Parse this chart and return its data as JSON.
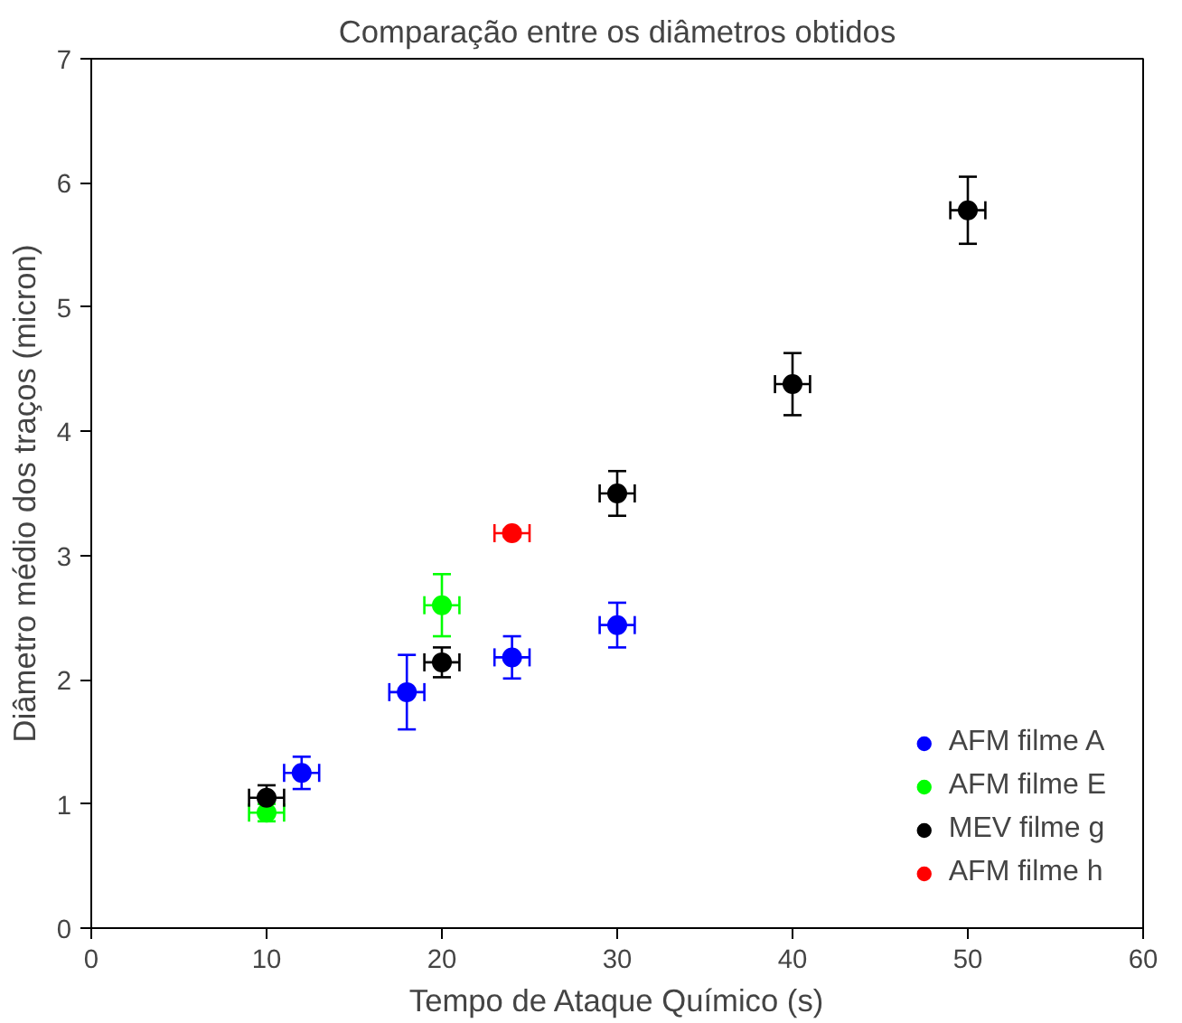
{
  "chart_data": {
    "type": "scatter",
    "title": "Comparação entre os diâmetros obtidos",
    "xlabel": "Tempo de Ataque Químico (s)",
    "ylabel": "Diâmetro médio dos traços (micron)",
    "xlim": [
      0,
      60
    ],
    "ylim": [
      0,
      7
    ],
    "xticks": [
      0,
      10,
      20,
      30,
      40,
      50,
      60
    ],
    "yticks": [
      0,
      1,
      2,
      3,
      4,
      5,
      6,
      7
    ],
    "grid": false,
    "legend": "bottom right",
    "marker": "circle",
    "series": [
      {
        "name": "AFM filme A",
        "color": "#0000ff",
        "x": [
          12,
          18,
          24,
          30
        ],
        "values": [
          1.25,
          1.9,
          2.18,
          2.44
        ],
        "errors": [
          0.13,
          0.3,
          0.17,
          0.18
        ],
        "xerrors": [
          1,
          1,
          1,
          1
        ]
      },
      {
        "name": "AFM filme E",
        "color": "#00ff00",
        "x": [
          10,
          20
        ],
        "values": [
          0.93,
          2.6
        ],
        "errors": [
          0.07,
          0.25
        ],
        "xerrors": [
          1,
          1
        ]
      },
      {
        "name": "MEV filme g",
        "color": "#000000",
        "x": [
          10,
          20,
          30,
          40,
          50
        ],
        "values": [
          1.05,
          2.14,
          3.5,
          4.38,
          5.78
        ],
        "errors": [
          0.1,
          0.12,
          0.18,
          0.25,
          0.27
        ],
        "xerrors": [
          1,
          1,
          1,
          1,
          1
        ]
      },
      {
        "name": "AFM filme h",
        "color": "#ff0000",
        "x": [
          24
        ],
        "values": [
          3.18
        ],
        "errors": [
          0.03
        ],
        "xerrors": [
          1
        ]
      }
    ]
  }
}
